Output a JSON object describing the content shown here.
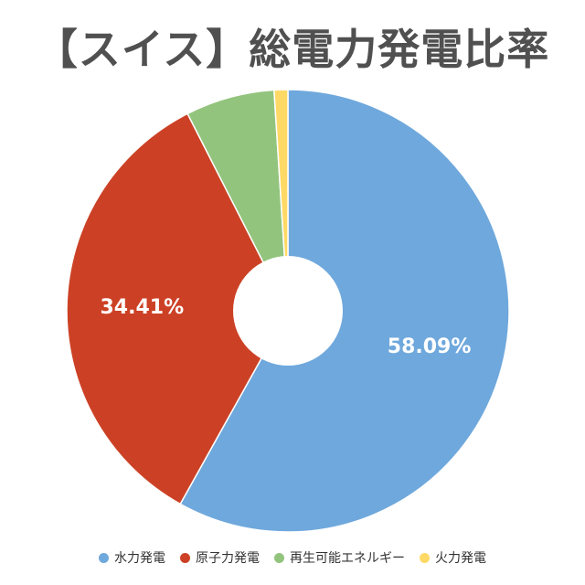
{
  "chart_data": {
    "type": "pie",
    "title": "【スイス】総電力発電比率",
    "donut": true,
    "slices": [
      {
        "name": "水力発電",
        "value": 58.09,
        "label": "58.09%",
        "color": "#6FA8DC"
      },
      {
        "name": "原子力発電",
        "value": 34.41,
        "label": "34.41%",
        "color": "#CC4125"
      },
      {
        "name": "再生可能エネルギー",
        "value": 6.5,
        "label": "",
        "color": "#93C47D"
      },
      {
        "name": "火力発電",
        "value": 1.0,
        "label": "",
        "color": "#FFD966"
      }
    ],
    "legend_position": "bottom"
  }
}
